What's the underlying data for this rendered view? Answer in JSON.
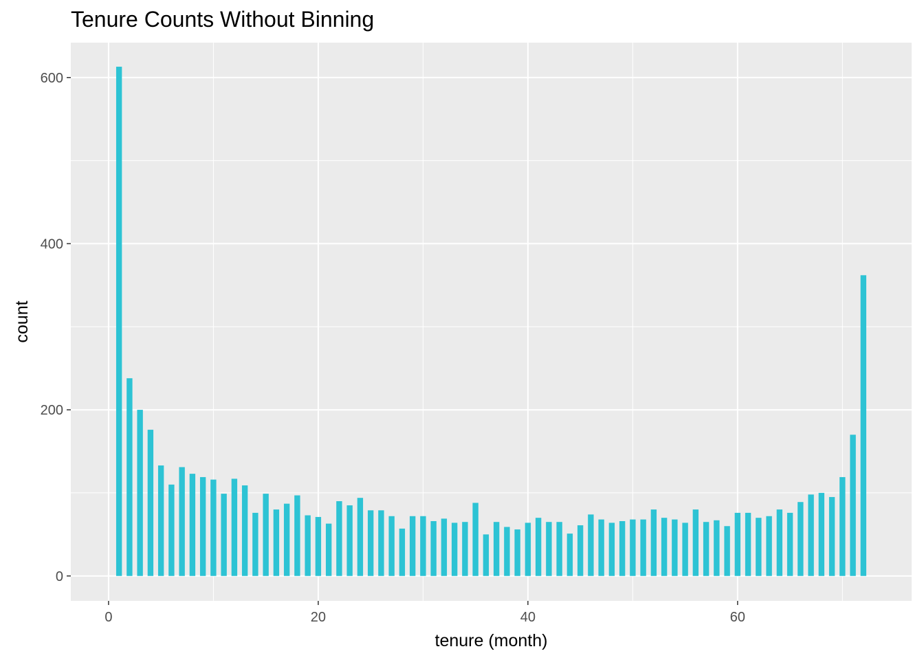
{
  "chart_data": {
    "type": "bar",
    "title": "Tenure Counts Without Binning",
    "xlabel": "tenure (month)",
    "ylabel": "count",
    "xlim": [
      -3.6,
      76.6
    ],
    "ylim": [
      -30,
      642
    ],
    "x_ticks_major": [
      0,
      20,
      40,
      60
    ],
    "x_ticks_minor": [
      10,
      30,
      50,
      70
    ],
    "y_ticks_major": [
      0,
      200,
      400,
      600
    ],
    "y_ticks_minor": [
      100,
      300,
      500
    ],
    "grid": true,
    "bar_color": "#2DC3D4",
    "panel_color": "#EBEBEB",
    "grid_color": "#FFFFFF",
    "x": [
      1,
      2,
      3,
      4,
      5,
      6,
      7,
      8,
      9,
      10,
      11,
      12,
      13,
      14,
      15,
      16,
      17,
      18,
      19,
      20,
      21,
      22,
      23,
      24,
      25,
      26,
      27,
      28,
      29,
      30,
      31,
      32,
      33,
      34,
      35,
      36,
      37,
      38,
      39,
      40,
      41,
      42,
      43,
      44,
      45,
      46,
      47,
      48,
      49,
      50,
      51,
      52,
      53,
      54,
      55,
      56,
      57,
      58,
      59,
      60,
      61,
      62,
      63,
      64,
      65,
      66,
      67,
      68,
      69,
      70,
      71,
      72
    ],
    "values": [
      613,
      238,
      200,
      176,
      133,
      110,
      131,
      123,
      119,
      116,
      99,
      117,
      109,
      76,
      99,
      80,
      87,
      97,
      73,
      71,
      63,
      90,
      85,
      94,
      79,
      79,
      72,
      57,
      72,
      72,
      66,
      69,
      64,
      65,
      88,
      50,
      65,
      59,
      56,
      64,
      70,
      65,
      65,
      51,
      61,
      74,
      68,
      64,
      66,
      68,
      68,
      80,
      70,
      68,
      64,
      80,
      65,
      67,
      60,
      76,
      76,
      70,
      72,
      80,
      76,
      89,
      98,
      100,
      95,
      119,
      170,
      362
    ]
  }
}
